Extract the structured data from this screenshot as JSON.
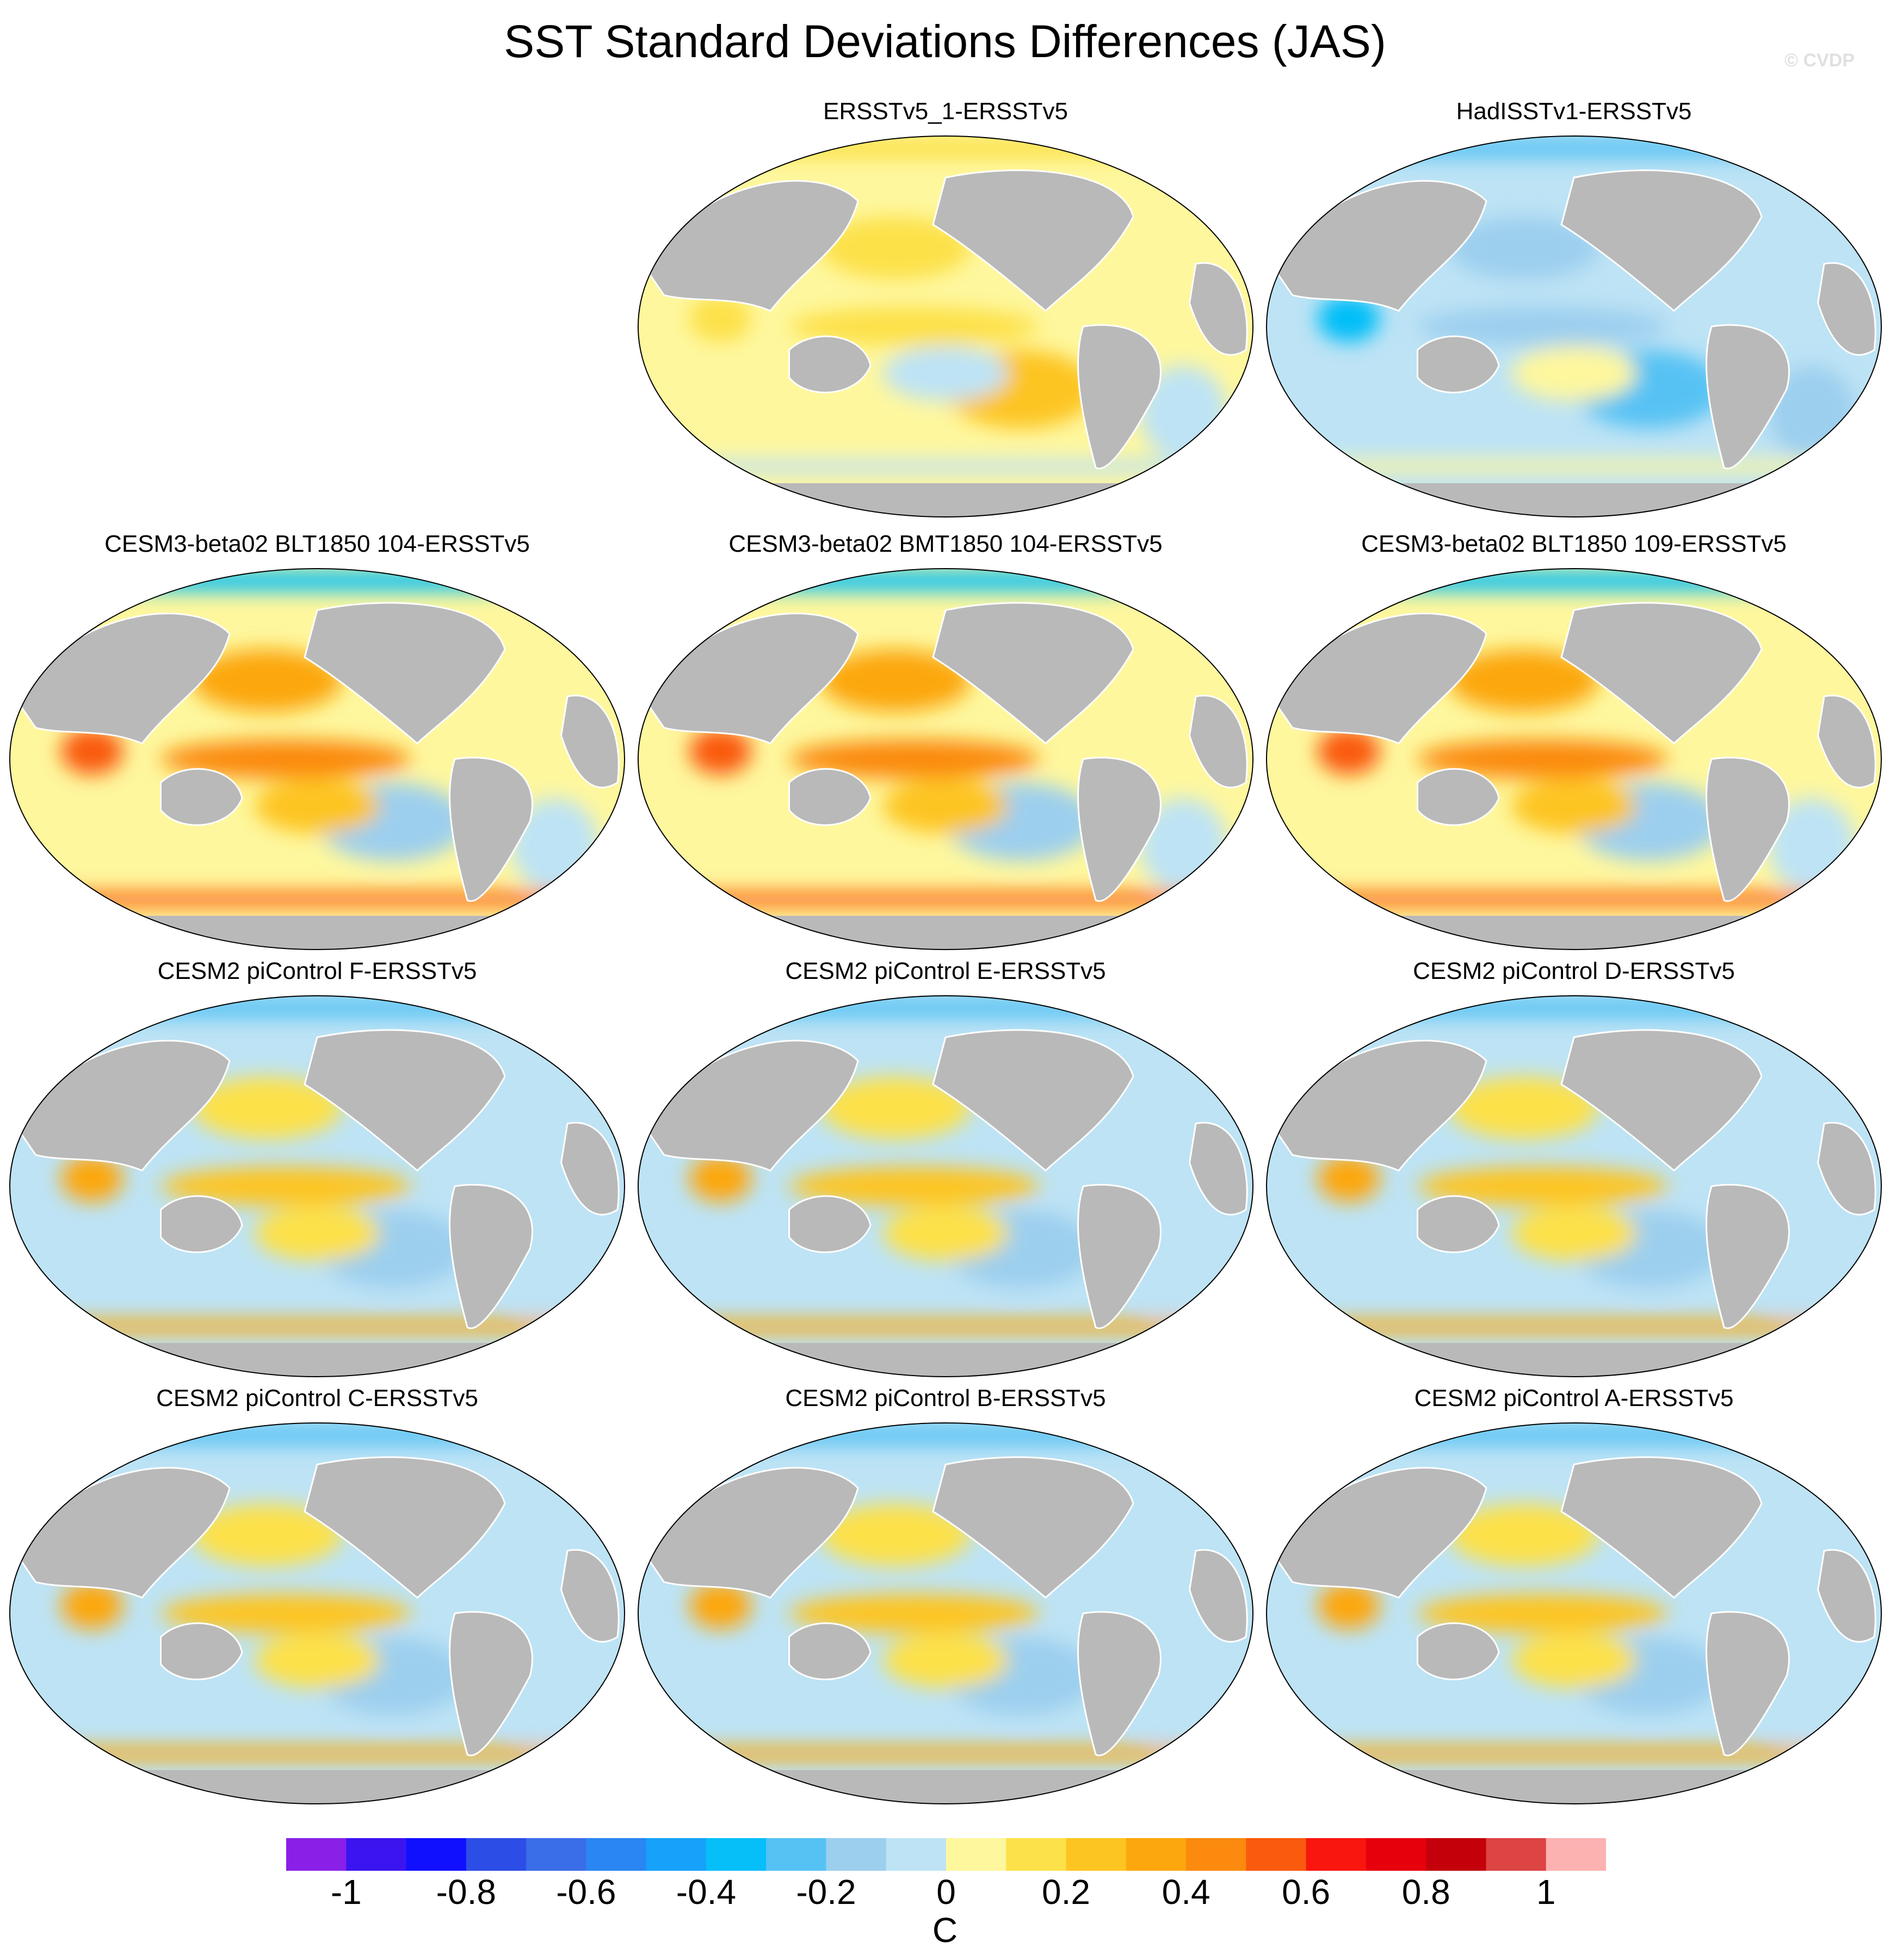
{
  "title": "SST Standard Deviations Differences (JAS)",
  "watermark": "© CVDP",
  "panels": [
    {
      "label": "ERSSTv5_1-ERSSTv5",
      "style": "mostly-positive-weak"
    },
    {
      "label": "HadISSTv1-ERSSTv5",
      "style": "mostly-negative"
    },
    {
      "label": "CESM3-beta02 BLT1850 104-ERSSTv5",
      "style": "strong-mixed"
    },
    {
      "label": "CESM3-beta02 BMT1850 104-ERSSTv5",
      "style": "strong-mixed"
    },
    {
      "label": "CESM3-beta02 BLT1850 109-ERSSTv5",
      "style": "strong-mixed"
    },
    {
      "label": "CESM2 piControl F-ERSSTv5",
      "style": "enso-positive"
    },
    {
      "label": "CESM2 piControl E-ERSSTv5",
      "style": "enso-positive"
    },
    {
      "label": "CESM2 piControl D-ERSSTv5",
      "style": "enso-positive"
    },
    {
      "label": "CESM2 piControl C-ERSSTv5",
      "style": "enso-positive"
    },
    {
      "label": "CESM2 piControl B-ERSSTv5",
      "style": "enso-positive"
    },
    {
      "label": "CESM2 piControl A-ERSSTv5",
      "style": "enso-positive"
    }
  ],
  "colorbar": {
    "units": "C",
    "tick_labels": [
      "-1",
      "-0.8",
      "-0.6",
      "-0.4",
      "-0.2",
      "0",
      "0.2",
      "0.4",
      "0.6",
      "0.8",
      "1"
    ],
    "colors": [
      "#8a20e8",
      "#3c14f0",
      "#1010ff",
      "#2c4ee6",
      "#3a6ee8",
      "#2a86f2",
      "#16a2fa",
      "#06bef8",
      "#56c2f4",
      "#9ccfee",
      "#bde3f5",
      "#fef79e",
      "#fde14a",
      "#fdc521",
      "#fca70e",
      "#fb8a0e",
      "#fa5a0e",
      "#f8160e",
      "#e6000c",
      "#c4000a",
      "#dd4444",
      "#fdb2b2"
    ]
  }
}
